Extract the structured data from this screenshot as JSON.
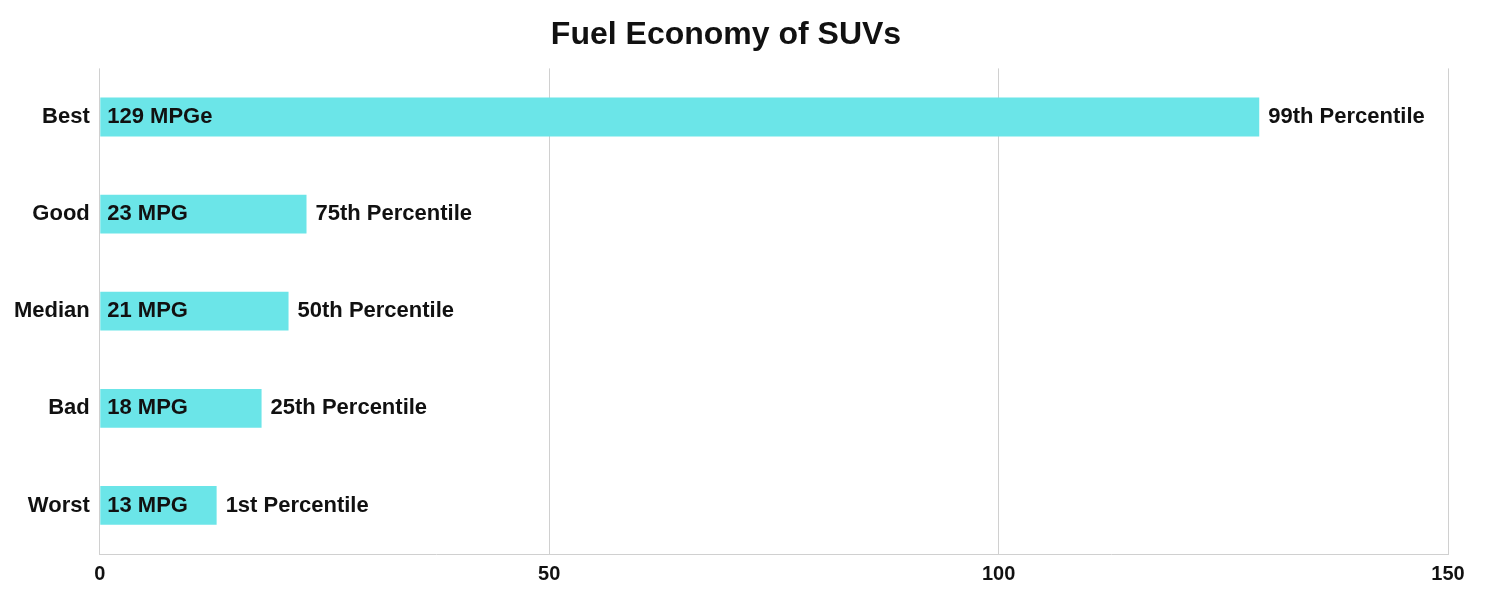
{
  "chart_data": {
    "type": "bar",
    "title": "Fuel Economy of SUVs",
    "orientation": "horizontal",
    "categories": [
      "Best",
      "Good",
      "Median",
      "Bad",
      "Worst"
    ],
    "values": [
      129,
      23,
      21,
      18,
      13
    ],
    "value_labels": [
      "129 MPGe",
      "23 MPG",
      "21 MPG",
      "18 MPG",
      "13 MPG"
    ],
    "annotations": [
      "99th Percentile",
      "75th Percentile",
      "50th Percentile",
      "25th Percentile",
      "1st Percentile"
    ],
    "data_labels": true,
    "color": "#6be5e8",
    "xlim": [
      0,
      150
    ],
    "xticks": [
      0,
      50,
      100,
      150
    ],
    "grid": true
  }
}
